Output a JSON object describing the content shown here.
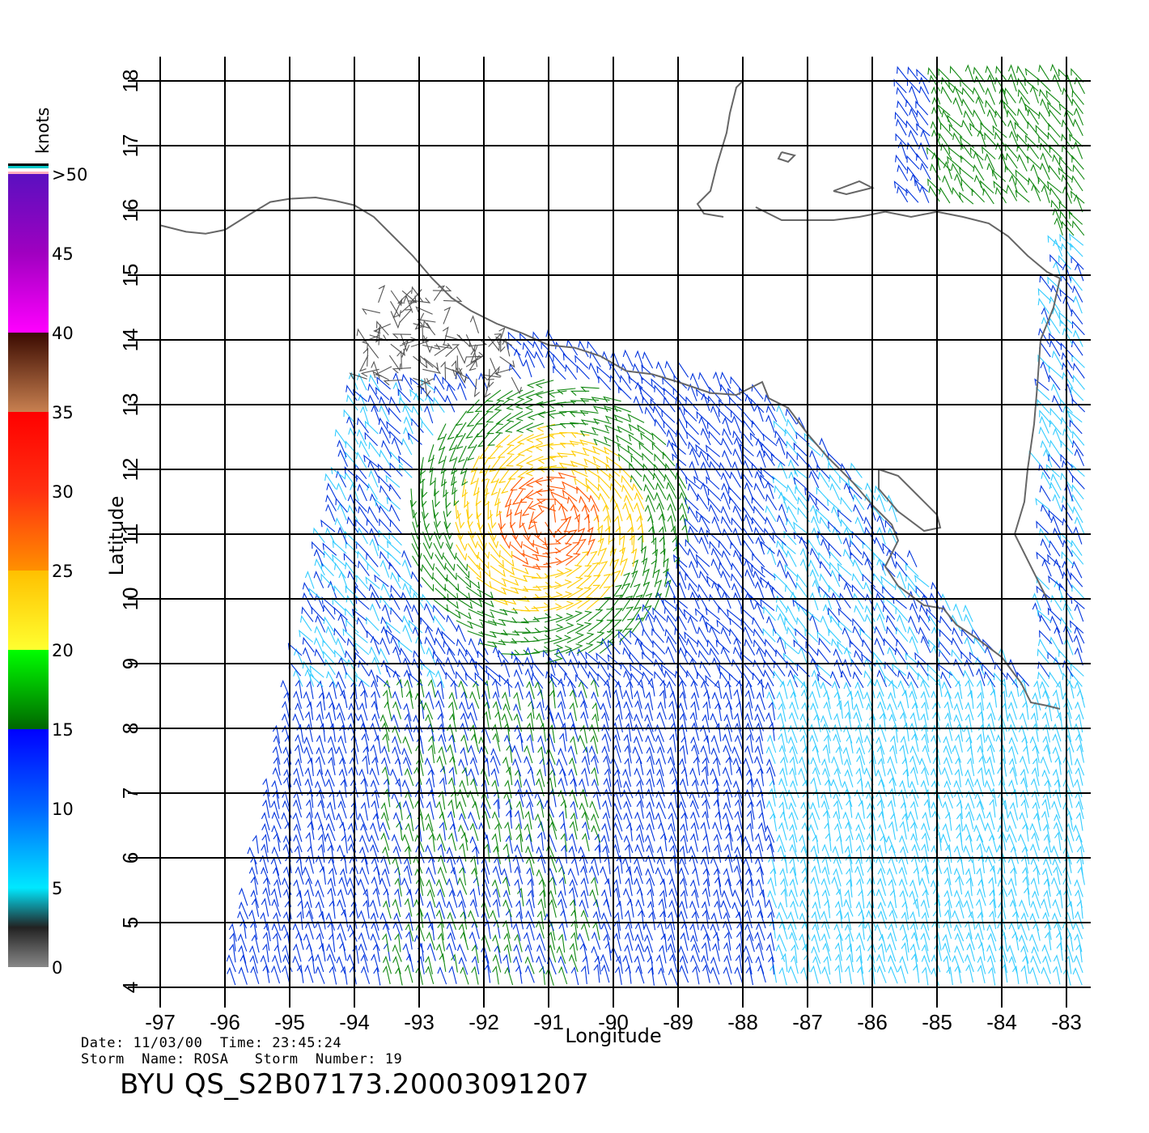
{
  "axes": {
    "x_label": "Longitude",
    "y_label": "Latitude",
    "x_ticks": [
      "-97",
      "-96",
      "-95",
      "-94",
      "-93",
      "-92",
      "-91",
      "-90",
      "-89",
      "-88",
      "-87",
      "-86",
      "-85",
      "-84",
      "-83"
    ],
    "y_ticks": [
      "4",
      "5",
      "6",
      "7",
      "8",
      "9",
      "10",
      "11",
      "12",
      "13",
      "14",
      "15",
      "16",
      "17",
      "18"
    ],
    "x_range": [
      -97,
      -83
    ],
    "y_range": [
      4,
      18
    ]
  },
  "colorbar": {
    "unit": "knots",
    "labels": [
      "0",
      "5",
      "10",
      "15",
      "20",
      "25",
      "30",
      "35",
      "40",
      "45",
      ">50"
    ],
    "colors": [
      "#888888",
      "#00e8ff",
      "#0060ff",
      "#0000ff",
      "#008800",
      "#00ff00",
      "#ffff30",
      "#ffc000",
      "#ff8000",
      "#ff2000",
      "#a0522d",
      "#4a1a00",
      "#ff00ff",
      "#8a00c0",
      "#6000c0"
    ]
  },
  "info": {
    "date_label": "Date:",
    "date": "11/03/00",
    "time_label": "Time:",
    "time": "23:45:24",
    "storm_name_label": "Storm  Name:",
    "storm_name": "ROSA",
    "storm_number_label": "Storm  Number:",
    "storm_number": "19"
  },
  "product_id": "BYU  QS_S2B07173.20003091207",
  "coastline_color": "#666666",
  "wind_colors": {
    "calm": "#555555",
    "light": "#33ccff",
    "moderate": "#0033dd",
    "fresh": "#118811",
    "strong": "#ffcc00",
    "gale": "#ff5500"
  }
}
